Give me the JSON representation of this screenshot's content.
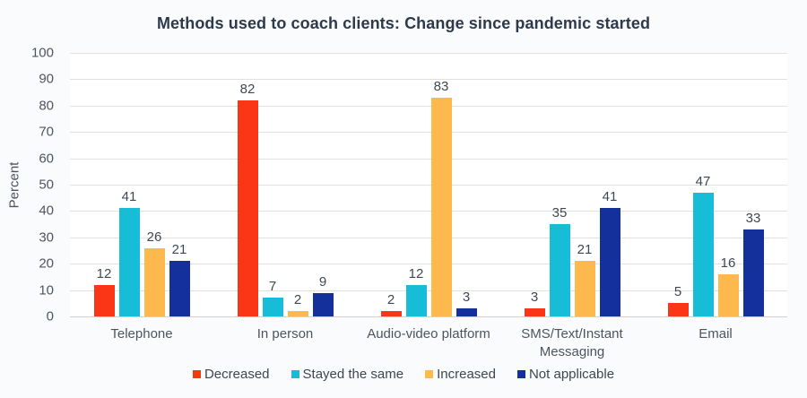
{
  "chart_data": {
    "type": "bar",
    "title": "Methods used to coach clients: Change since pandemic started",
    "xlabel": "",
    "ylabel": "Percent",
    "ylim": [
      0,
      100
    ],
    "yticks": [
      0,
      10,
      20,
      30,
      40,
      50,
      60,
      70,
      80,
      90,
      100
    ],
    "grid": true,
    "legend_position": "bottom",
    "categories": [
      "Telephone",
      "In person",
      "Audio-video platform",
      "SMS/Text/Instant Messaging",
      "Email"
    ],
    "series": [
      {
        "name": "Decreased",
        "color": "#fa3617",
        "values": [
          12,
          82,
          2,
          3,
          5
        ]
      },
      {
        "name": "Stayed the same",
        "color": "#17bcd6",
        "values": [
          41,
          7,
          12,
          35,
          47
        ]
      },
      {
        "name": "Increased",
        "color": "#fdb94d",
        "values": [
          26,
          2,
          83,
          21,
          16
        ]
      },
      {
        "name": "Not applicable",
        "color": "#14309b",
        "values": [
          21,
          9,
          3,
          41,
          33
        ]
      }
    ]
  },
  "colors": {
    "page_background": "#fafbfc",
    "plot_background": "#ffffff",
    "gridline": "#e3e0dd",
    "title_text": "#2d3a4b",
    "axis_text": "#4c555f"
  }
}
